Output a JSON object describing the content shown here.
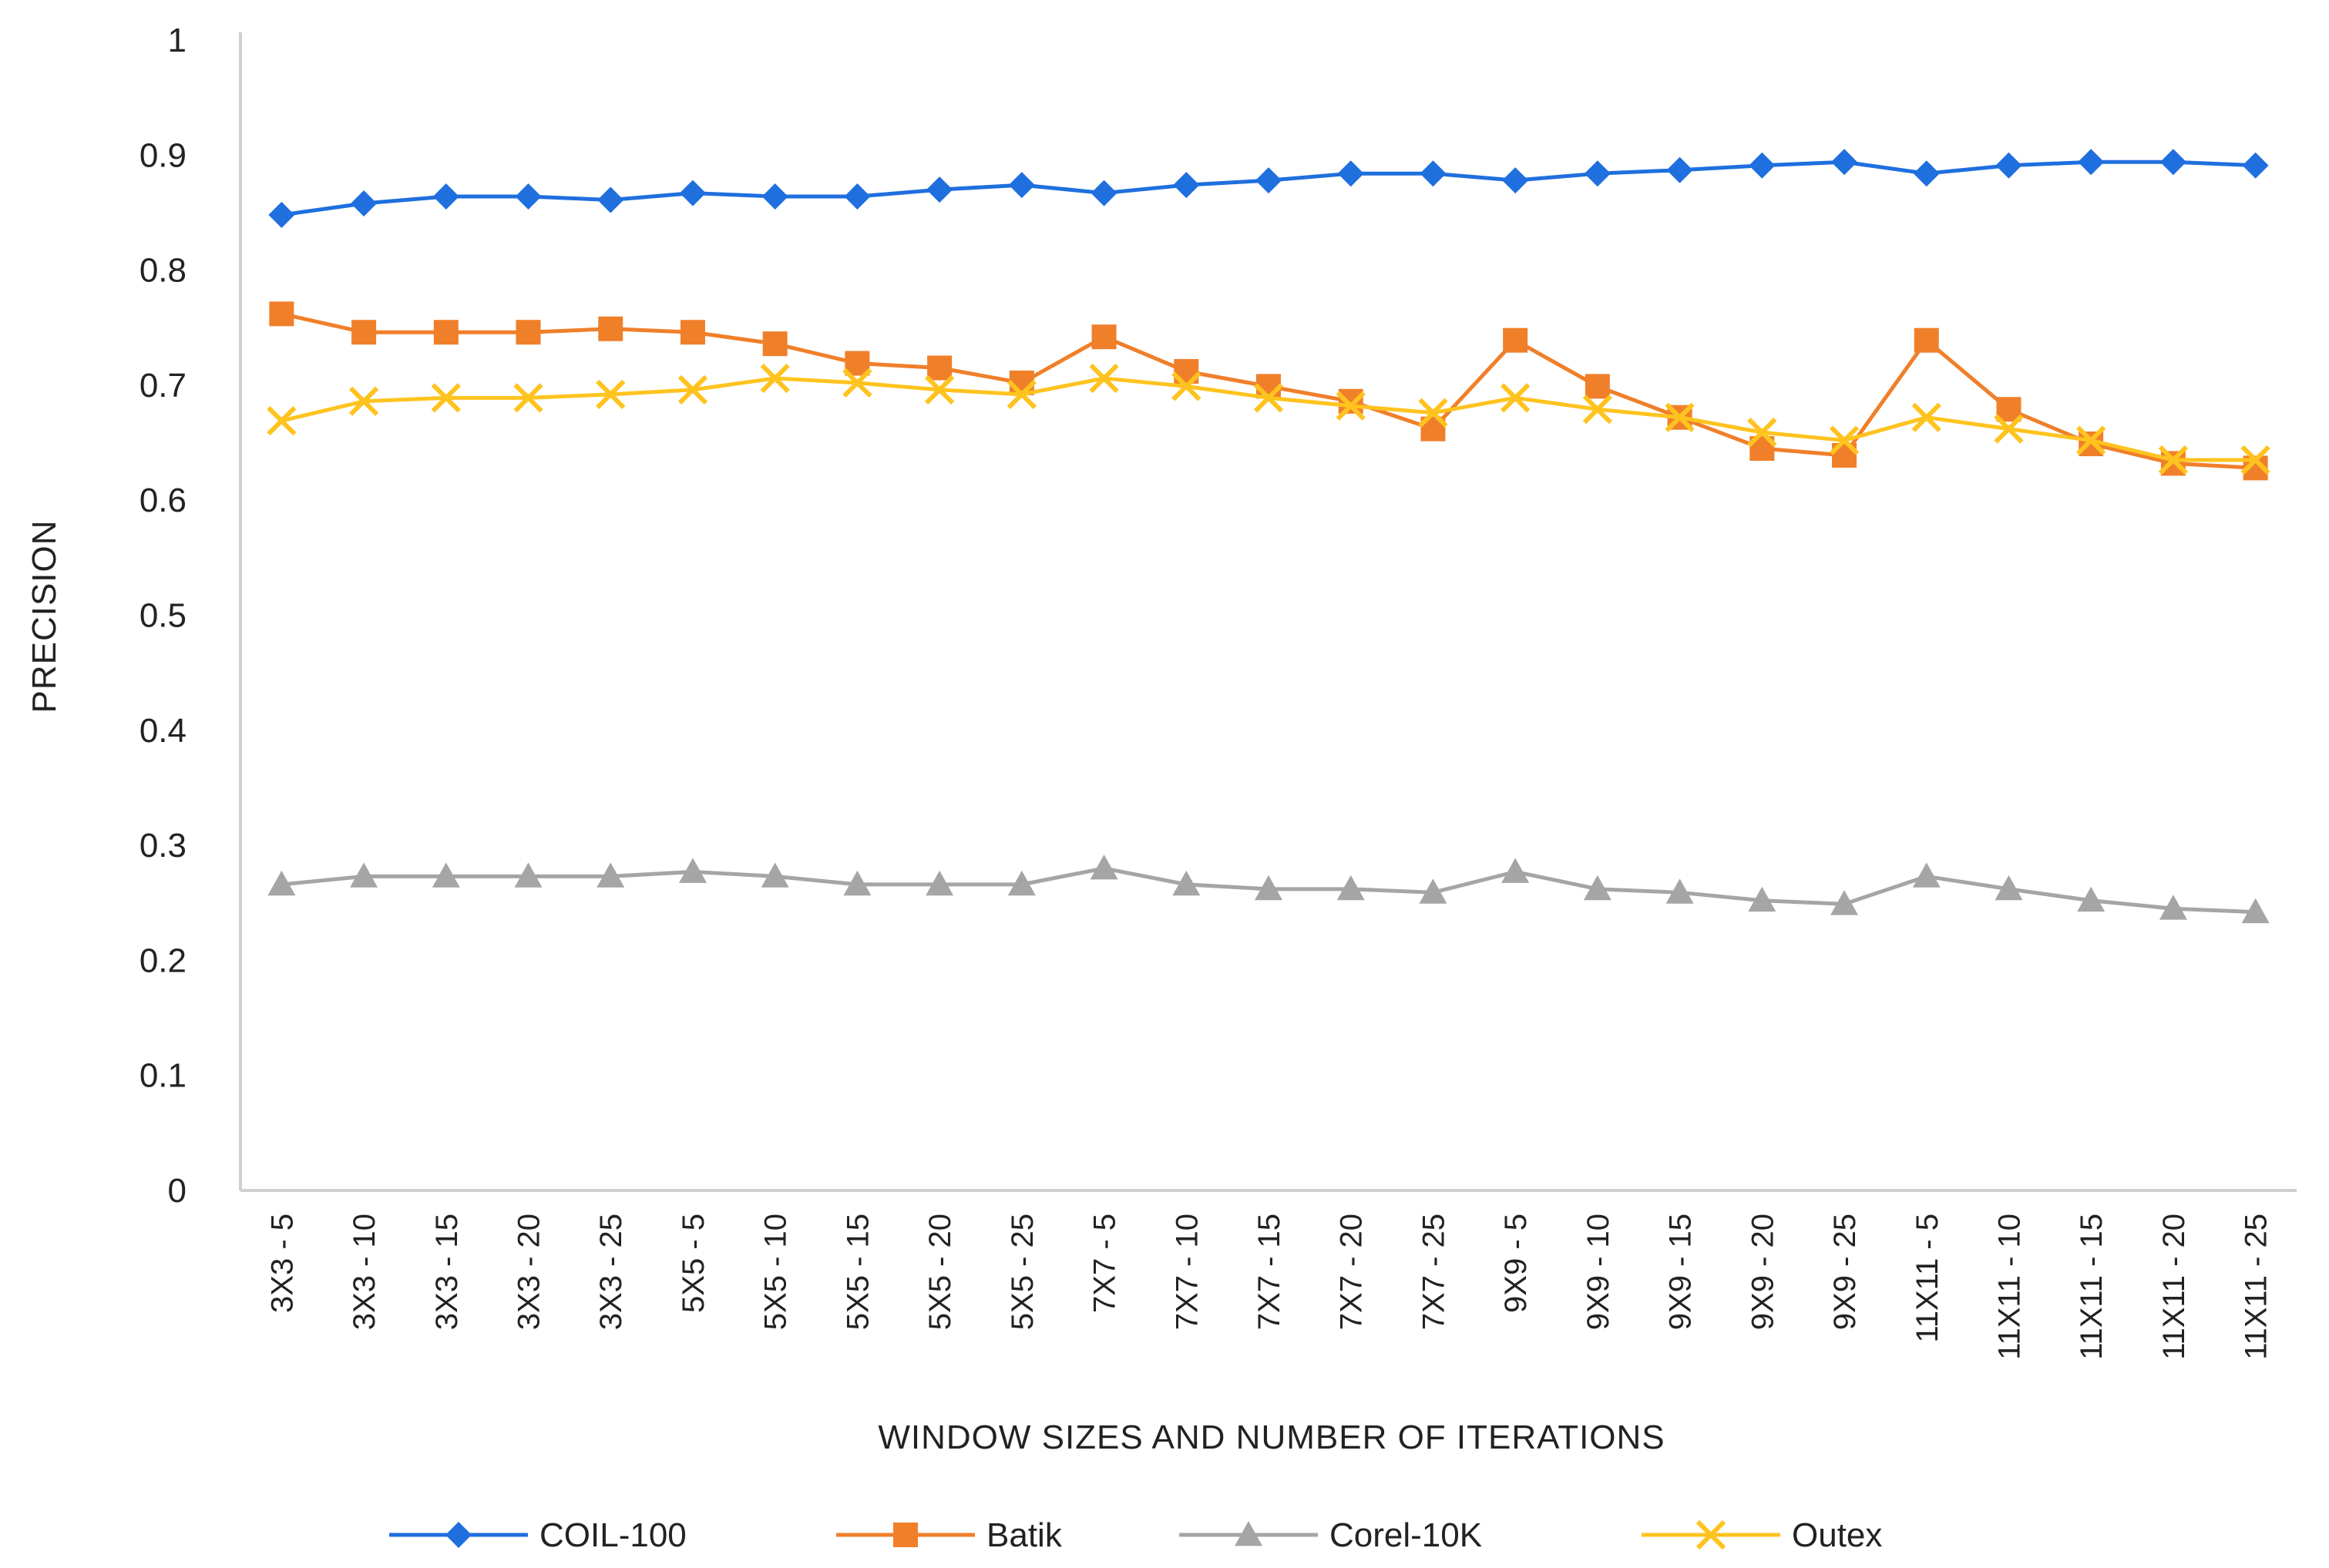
{
  "chart_data": {
    "type": "line",
    "title": "",
    "xlabel": "WINDOW SIZES AND NUMBER OF ITERATIONS",
    "ylabel": "PRECISION",
    "ylim": [
      0,
      1
    ],
    "yticks": [
      0,
      0.1,
      0.2,
      0.3,
      0.4,
      0.5,
      0.6,
      0.7,
      0.8,
      0.9,
      1
    ],
    "ytick_labels": [
      "0",
      "0.1",
      "0.2",
      "0.3",
      "0.4",
      "0.5",
      "0.6",
      "0.7",
      "0.8",
      "0.9",
      "1"
    ],
    "grid": false,
    "legend_position": "bottom",
    "categories": [
      "3X3 - 5",
      "3X3 - 10",
      "3X3 - 15",
      "3X3 - 20",
      "3X3 - 25",
      "5X5 - 5",
      "5X5 - 10",
      "5X5 - 15",
      "5X5 - 20",
      "5X5 - 25",
      "7X7 - 5",
      "7X7 - 10",
      "7X7 - 15",
      "7X7 - 20",
      "7X7 - 25",
      "9X9 - 5",
      "9X9 - 10",
      "9X9 - 15",
      "9X9 - 20",
      "9X9 - 25",
      "11X11 - 5",
      "11X11 - 10",
      "11X11 - 15",
      "11X11 - 20",
      "11X11 - 25"
    ],
    "series": [
      {
        "name": "COIL-100",
        "color": "#1f6fde",
        "marker": "diamond",
        "values": [
          0.848,
          0.858,
          0.864,
          0.864,
          0.861,
          0.867,
          0.864,
          0.864,
          0.87,
          0.874,
          0.867,
          0.874,
          0.878,
          0.884,
          0.884,
          0.878,
          0.884,
          0.887,
          0.891,
          0.894,
          0.884,
          0.891,
          0.894,
          0.894,
          0.891
        ]
      },
      {
        "name": "Batik",
        "color": "#f07f2a",
        "marker": "square",
        "values": [
          0.762,
          0.746,
          0.746,
          0.746,
          0.749,
          0.746,
          0.736,
          0.719,
          0.715,
          0.702,
          0.742,
          0.712,
          0.699,
          0.686,
          0.662,
          0.739,
          0.699,
          0.672,
          0.645,
          0.639,
          0.739,
          0.679,
          0.649,
          0.632,
          0.628
        ]
      },
      {
        "name": "Corel-10K",
        "color": "#a5a5a5",
        "marker": "triangle",
        "values": [
          0.266,
          0.273,
          0.273,
          0.273,
          0.273,
          0.277,
          0.273,
          0.266,
          0.266,
          0.266,
          0.28,
          0.266,
          0.262,
          0.262,
          0.259,
          0.277,
          0.262,
          0.259,
          0.252,
          0.249,
          0.273,
          0.262,
          0.252,
          0.245,
          0.242
        ]
      },
      {
        "name": "Outex",
        "color": "#ffc31f",
        "marker": "x",
        "values": [
          0.669,
          0.686,
          0.689,
          0.689,
          0.692,
          0.696,
          0.706,
          0.702,
          0.696,
          0.692,
          0.706,
          0.699,
          0.689,
          0.682,
          0.676,
          0.689,
          0.679,
          0.672,
          0.659,
          0.652,
          0.672,
          0.662,
          0.652,
          0.635,
          0.635
        ]
      }
    ]
  }
}
